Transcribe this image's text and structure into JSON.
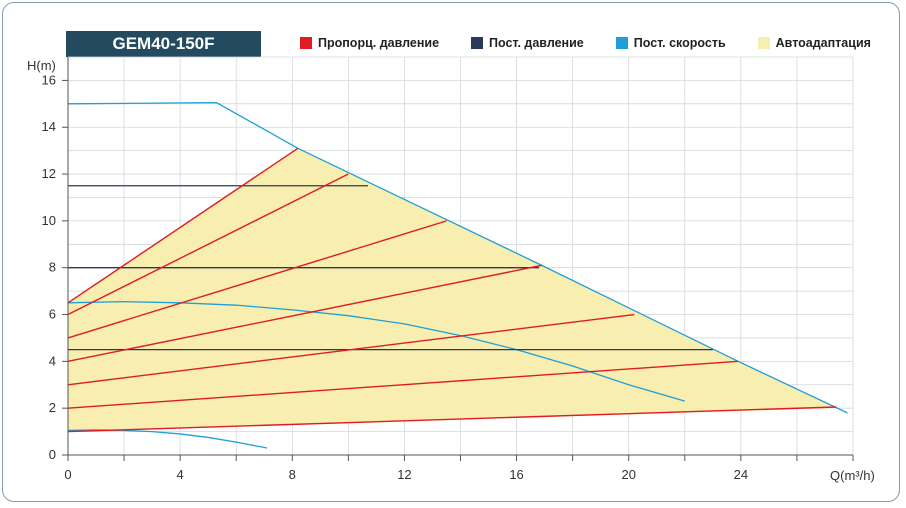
{
  "chart_data": {
    "type": "line",
    "title": "GEM40-150F",
    "xlabel": "Q(m³/h)",
    "ylabel": "H(m)",
    "xlim": [
      0,
      28
    ],
    "ylim": [
      0,
      17
    ],
    "xticks": [
      0,
      4,
      8,
      12,
      16,
      20,
      24
    ],
    "yticks": [
      0,
      2,
      4,
      6,
      8,
      10,
      12,
      14,
      16
    ],
    "grid": true,
    "legend": [
      {
        "name": "Пропорц. давление",
        "color": "#e01b24"
      },
      {
        "name": "Пост. давление",
        "color": "#2a3a5a"
      },
      {
        "name": "Пост. скорость",
        "color": "#1e9fd8"
      },
      {
        "name": "Автоадаптация",
        "color": "#f7eeb0"
      }
    ],
    "autoadapt_area": [
      [
        0,
        6.5
      ],
      [
        8.2,
        13.1
      ],
      [
        27.4,
        2.0
      ],
      [
        0,
        1.0
      ]
    ],
    "proportional": [
      {
        "x": [
          0,
          8.2
        ],
        "y": [
          6.5,
          13.1
        ]
      },
      {
        "x": [
          0,
          10.0
        ],
        "y": [
          6.0,
          12.0
        ]
      },
      {
        "x": [
          0,
          13.5
        ],
        "y": [
          5.0,
          10.0
        ]
      },
      {
        "x": [
          0,
          16.9
        ],
        "y": [
          4.0,
          8.1
        ]
      },
      {
        "x": [
          0,
          20.2
        ],
        "y": [
          3.0,
          6.0
        ]
      },
      {
        "x": [
          0,
          23.9
        ],
        "y": [
          2.0,
          4.0
        ]
      },
      {
        "x": [
          0,
          27.4
        ],
        "y": [
          1.0,
          2.05
        ]
      }
    ],
    "constant_pressure": [
      {
        "x": [
          0,
          10.7
        ],
        "y": [
          11.5,
          11.5
        ]
      },
      {
        "x": [
          0,
          16.8
        ],
        "y": [
          8.0,
          8.0
        ]
      },
      {
        "x": [
          0,
          23.0
        ],
        "y": [
          4.5,
          4.5
        ]
      }
    ],
    "constant_speed": [
      {
        "x": [
          0,
          5.3,
          8.2,
          16.9,
          23.9,
          27.8
        ],
        "y": [
          15.0,
          15.05,
          13.1,
          8.1,
          4.0,
          1.8
        ]
      },
      {
        "x": [
          0,
          2,
          4,
          6,
          8,
          10,
          12,
          14,
          16,
          18,
          20,
          22
        ],
        "y": [
          6.5,
          6.55,
          6.5,
          6.4,
          6.2,
          5.95,
          5.6,
          5.1,
          4.5,
          3.8,
          3.0,
          2.3
        ]
      },
      {
        "x": [
          0,
          1,
          2,
          3,
          4,
          5,
          6,
          7.1
        ],
        "y": [
          1.05,
          1.07,
          1.05,
          1.0,
          0.9,
          0.75,
          0.55,
          0.3
        ]
      }
    ]
  }
}
